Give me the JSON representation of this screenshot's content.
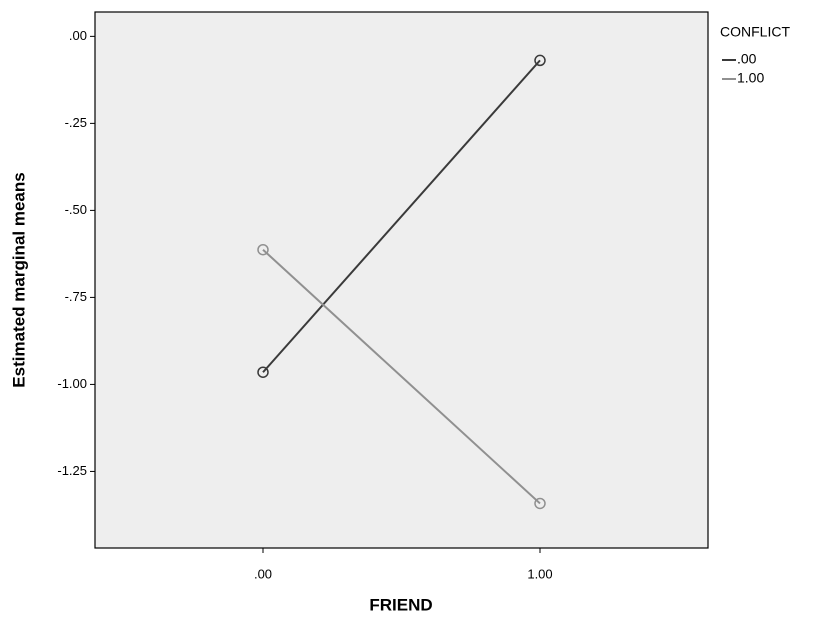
{
  "chart_data": {
    "type": "line",
    "x_label": "FRIEND",
    "y_label": "Estimated marginal means",
    "categories": [
      ".00",
      "1.00"
    ],
    "legend_title": "CONFLICT",
    "legend": "right",
    "series": [
      {
        "name": ".00",
        "color": "#3a3a3a",
        "values": [
          -0.965,
          -0.069
        ]
      },
      {
        "name": "1.00",
        "color": "#909090",
        "values": [
          -0.613,
          -1.342
        ]
      }
    ],
    "ylim": [
      -1.47,
      0.07
    ],
    "yticks": [
      {
        "value": 0,
        "label": ".00"
      },
      {
        "value": -0.25,
        "label": "-.25"
      },
      {
        "value": -0.5,
        "label": "-.50"
      },
      {
        "value": -0.75,
        "label": "-.75"
      },
      {
        "value": -1,
        "label": "-1.00"
      },
      {
        "value": -1.25,
        "label": "-1.25"
      }
    ]
  }
}
